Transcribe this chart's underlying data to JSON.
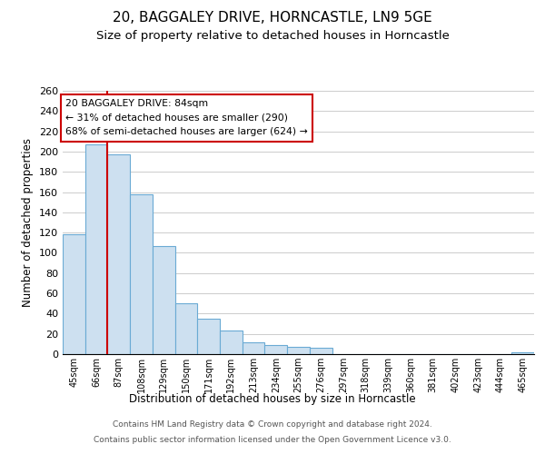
{
  "title": "20, BAGGALEY DRIVE, HORNCASTLE, LN9 5GE",
  "subtitle": "Size of property relative to detached houses in Horncastle",
  "xlabel": "Distribution of detached houses by size in Horncastle",
  "ylabel": "Number of detached properties",
  "footer_line1": "Contains HM Land Registry data © Crown copyright and database right 2024.",
  "footer_line2": "Contains public sector information licensed under the Open Government Licence v3.0.",
  "bin_labels": [
    "45sqm",
    "66sqm",
    "87sqm",
    "108sqm",
    "129sqm",
    "150sqm",
    "171sqm",
    "192sqm",
    "213sqm",
    "234sqm",
    "255sqm",
    "276sqm",
    "297sqm",
    "318sqm",
    "339sqm",
    "360sqm",
    "381sqm",
    "402sqm",
    "423sqm",
    "444sqm",
    "465sqm"
  ],
  "bar_heights": [
    118,
    207,
    197,
    158,
    107,
    50,
    35,
    23,
    12,
    9,
    7,
    6,
    0,
    0,
    0,
    0,
    0,
    0,
    0,
    0,
    2
  ],
  "bar_color": "#cde0f0",
  "bar_edge_color": "#6aaad4",
  "red_line_x": 2,
  "annotation_title": "20 BAGGALEY DRIVE: 84sqm",
  "annotation_line2": "← 31% of detached houses are smaller (290)",
  "annotation_line3": "68% of semi-detached houses are larger (624) →",
  "annotation_box_color": "#ffffff",
  "annotation_box_edge_color": "#cc0000",
  "ylim": [
    0,
    260
  ],
  "yticks": [
    0,
    20,
    40,
    60,
    80,
    100,
    120,
    140,
    160,
    180,
    200,
    220,
    240,
    260
  ],
  "bg_color": "#ffffff",
  "grid_color": "#cccccc",
  "title_fontsize": 11,
  "subtitle_fontsize": 9.5
}
